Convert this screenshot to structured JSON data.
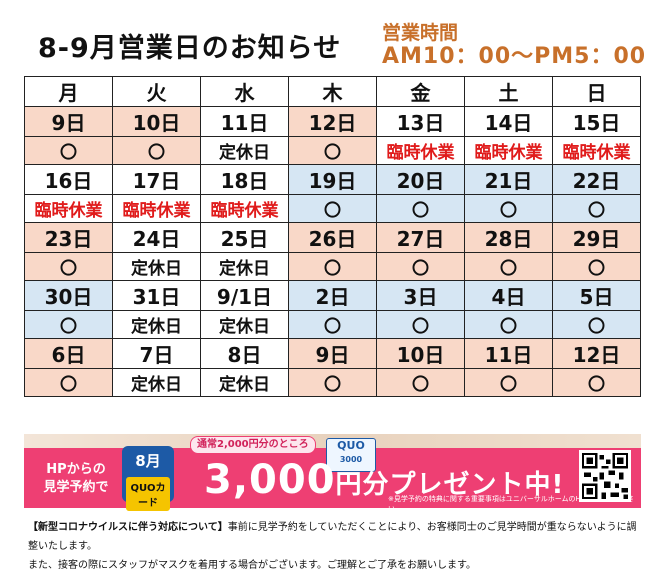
{
  "title": "8-9月営業日のお知らせ",
  "hours": {
    "label": "営業時間",
    "time": "AM10：00～PM5：00"
  },
  "weekdays": [
    "月",
    "火",
    "水",
    "木",
    "金",
    "土",
    "日"
  ],
  "weeks": [
    {
      "dates": [
        "9日",
        "10日",
        "11日",
        "12日",
        "13日",
        "14日",
        "15日"
      ],
      "statuses": [
        "〇",
        "〇",
        "定休日",
        "〇",
        "臨時休業",
        "臨時休業",
        "臨時休業"
      ],
      "colors": [
        "pink",
        "pink",
        "white",
        "pink",
        "white",
        "white",
        "white"
      ]
    },
    {
      "dates": [
        "16日",
        "17日",
        "18日",
        "19日",
        "20日",
        "21日",
        "22日"
      ],
      "statuses": [
        "臨時休業",
        "臨時休業",
        "臨時休業",
        "〇",
        "〇",
        "〇",
        "〇"
      ],
      "colors": [
        "white",
        "white",
        "white",
        "blue",
        "blue",
        "blue",
        "blue"
      ]
    },
    {
      "dates": [
        "23日",
        "24日",
        "25日",
        "26日",
        "27日",
        "28日",
        "29日"
      ],
      "statuses": [
        "〇",
        "定休日",
        "定休日",
        "〇",
        "〇",
        "〇",
        "〇"
      ],
      "colors": [
        "pink",
        "white",
        "white",
        "pink",
        "pink",
        "pink",
        "pink"
      ]
    },
    {
      "dates": [
        "30日",
        "31日",
        "9/1日",
        "2日",
        "3日",
        "4日",
        "5日"
      ],
      "statuses": [
        "〇",
        "定休日",
        "定休日",
        "〇",
        "〇",
        "〇",
        "〇"
      ],
      "colors": [
        "blue",
        "white",
        "white",
        "blue",
        "blue",
        "blue",
        "blue"
      ]
    },
    {
      "dates": [
        "6日",
        "7日",
        "8日",
        "9日",
        "10日",
        "11日",
        "12日"
      ],
      "statuses": [
        "〇",
        "定休日",
        "定休日",
        "〇",
        "〇",
        "〇",
        "〇"
      ],
      "colors": [
        "pink",
        "white",
        "white",
        "pink",
        "pink",
        "pink",
        "pink"
      ]
    }
  ],
  "banner": {
    "hp_line1": "HPからの",
    "hp_line2": "見学予約で",
    "month": "8月",
    "card_label": "QUOカード",
    "normal_note": "通常2,000円分のところ",
    "amount": "3,000",
    "amount_unit": "円分",
    "present": "プレゼント中!",
    "quo_brand": "QUO",
    "quo_value": "3000",
    "fine_print": "※見学予約の特典に関する重要事項はユニバーサルホームのHPをご確認ください。"
  },
  "notice": {
    "heading": "【新型コロナウイルスに伴う対応について】",
    "line1": "事前に見学予約をしていただくことにより、お客様同士のご見学時間が重ならないように調整いたします。",
    "line2": "また、接客の際にスタッフがマスクを着用する場合がございます。ご理解とご了承をお願いします。"
  },
  "colors": {
    "pink": "#f9d8c8",
    "blue": "#d6e6f3",
    "closure_red": "#e01b1b",
    "hours_orange": "#c8702a",
    "banner_pink": "#ee3f73"
  }
}
